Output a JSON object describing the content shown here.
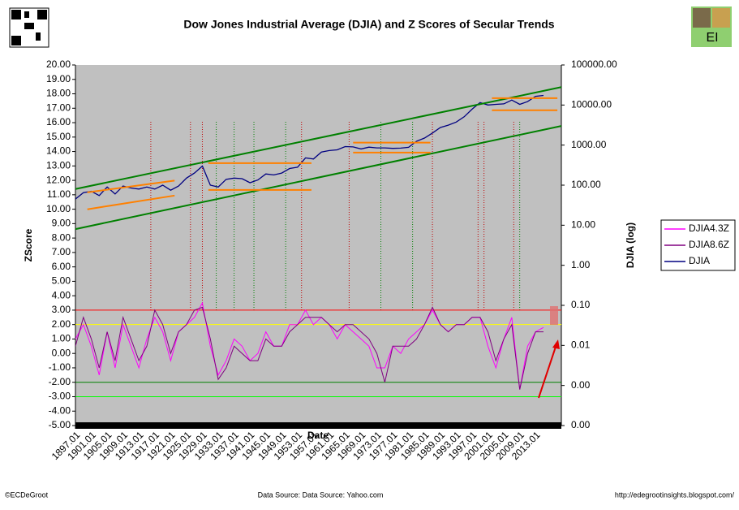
{
  "chart_data": {
    "type": "line",
    "title": "Dow Jones Industrial Average (DJIA) and Z Scores of Secular Trends",
    "y_label": "ZScore",
    "y2_label": "DJIA (log)",
    "x_label": "Date",
    "credit": "©ECDeGroot",
    "source": "Data Source:  Data Source: Yahoo.com",
    "url": "http://edegrootinsights.blogspot.com/",
    "logo_text": "EI",
    "legend": "right",
    "background": "#c0c0c0",
    "y2_log": true,
    "xlim": [
      1897,
      2019.5
    ],
    "ylim": [
      -5,
      20
    ],
    "y2lim": [
      0.0001,
      100000
    ],
    "xticks": [
      {
        "value": 1897,
        "label": "1897.01"
      },
      {
        "value": 1901,
        "label": "1901.01"
      },
      {
        "value": 1905,
        "label": "1905.01"
      },
      {
        "value": 1909,
        "label": "1909.01"
      },
      {
        "value": 1913,
        "label": "1913.01"
      },
      {
        "value": 1917,
        "label": "1917.01"
      },
      {
        "value": 1921,
        "label": "1921.01"
      },
      {
        "value": 1925,
        "label": "1925.01"
      },
      {
        "value": 1929,
        "label": "1929.01"
      },
      {
        "value": 1933,
        "label": "1933.01"
      },
      {
        "value": 1937,
        "label": "1937.01"
      },
      {
        "value": 1941,
        "label": "1941.01"
      },
      {
        "value": 1945,
        "label": "1945.01"
      },
      {
        "value": 1949,
        "label": "1949.01"
      },
      {
        "value": 1953,
        "label": "1953.01"
      },
      {
        "value": 1957,
        "label": "1957.01"
      },
      {
        "value": 1961,
        "label": "1961.01"
      },
      {
        "value": 1965,
        "label": "1965.01"
      },
      {
        "value": 1969,
        "label": "1969.01"
      },
      {
        "value": 1973,
        "label": "1973.01"
      },
      {
        "value": 1977,
        "label": "1977.01"
      },
      {
        "value": 1981,
        "label": "1981.01"
      },
      {
        "value": 1985,
        "label": "1985.01"
      },
      {
        "value": 1989,
        "label": "1989.01"
      },
      {
        "value": 1993,
        "label": "1993.01"
      },
      {
        "value": 1997,
        "label": "1997.01"
      },
      {
        "value": 2001,
        "label": "2001.01"
      },
      {
        "value": 2005,
        "label": "2005.01"
      },
      {
        "value": 2009,
        "label": "2009.01"
      },
      {
        "value": 2013,
        "label": "2013.01"
      }
    ],
    "yticks": [
      {
        "value": 20,
        "label": "20.00"
      },
      {
        "value": 19,
        "label": "19.00"
      },
      {
        "value": 18,
        "label": "18.00"
      },
      {
        "value": 17,
        "label": "17.00"
      },
      {
        "value": 16,
        "label": "16.00"
      },
      {
        "value": 15,
        "label": "15.00"
      },
      {
        "value": 14,
        "label": "14.00"
      },
      {
        "value": 13,
        "label": "13.00"
      },
      {
        "value": 12,
        "label": "12.00"
      },
      {
        "value": 11,
        "label": "11.00"
      },
      {
        "value": 10,
        "label": "10.00"
      },
      {
        "value": 9,
        "label": "9.00"
      },
      {
        "value": 8,
        "label": "8.00"
      },
      {
        "value": 7,
        "label": "7.00"
      },
      {
        "value": 6,
        "label": "6.00"
      },
      {
        "value": 5,
        "label": "5.00"
      },
      {
        "value": 4,
        "label": "4.00"
      },
      {
        "value": 3,
        "label": "3.00"
      },
      {
        "value": 2,
        "label": "2.00"
      },
      {
        "value": 1,
        "label": "1.00"
      },
      {
        "value": 0,
        "label": "0.00"
      },
      {
        "value": -1,
        "label": "-1.00"
      },
      {
        "value": -2,
        "label": "-2.00"
      },
      {
        "value": -3,
        "label": "-3.00"
      },
      {
        "value": -4,
        "label": "-4.00"
      },
      {
        "value": -5,
        "label": "-5.00"
      }
    ],
    "y2ticks": [
      {
        "value": 100000,
        "label": "100000.00"
      },
      {
        "value": 10000,
        "label": "10000.00"
      },
      {
        "value": 1000,
        "label": "1000.00"
      },
      {
        "value": 100,
        "label": "100.00"
      },
      {
        "value": 10,
        "label": "10.00"
      },
      {
        "value": 1,
        "label": "1.00"
      },
      {
        "value": 0.1,
        "label": "0.10"
      },
      {
        "value": 0.01,
        "label": "0.01"
      },
      {
        "value": 0.001,
        "label": "0.00"
      },
      {
        "value": 0.0001,
        "label": "0.00"
      }
    ],
    "x": [
      1897,
      1899,
      1901,
      1903,
      1905,
      1907,
      1909,
      1911,
      1913,
      1915,
      1917,
      1919,
      1921,
      1923,
      1925,
      1927,
      1929,
      1931,
      1933,
      1935,
      1937,
      1939,
      1941,
      1943,
      1945,
      1947,
      1949,
      1951,
      1953,
      1955,
      1957,
      1959,
      1961,
      1963,
      1965,
      1967,
      1969,
      1971,
      1973,
      1975,
      1977,
      1979,
      1981,
      1983,
      1985,
      1987,
      1989,
      1991,
      1993,
      1995,
      1997,
      1999,
      2001,
      2003,
      2005,
      2007,
      2009,
      2011,
      2013,
      2015
    ],
    "series": [
      {
        "name": "DJIA4.3Z",
        "color": "#ff00ff",
        "values": [
          1.0,
          2.0,
          0.5,
          -1.5,
          1.5,
          -1.0,
          2.0,
          0.5,
          -1.0,
          1.0,
          2.5,
          1.5,
          -0.5,
          1.5,
          2.0,
          2.5,
          3.5,
          0.5,
          -1.5,
          -0.5,
          1.0,
          0.5,
          -0.5,
          0.0,
          1.5,
          0.5,
          0.5,
          2.0,
          2.0,
          3.0,
          2.0,
          2.5,
          2.0,
          1.0,
          2.0,
          1.5,
          1.0,
          0.5,
          -1.0,
          -1.0,
          0.5,
          0.0,
          1.0,
          1.5,
          2.0,
          3.0,
          2.0,
          1.5,
          2.0,
          2.0,
          2.5,
          2.5,
          0.5,
          -1.0,
          1.0,
          2.5,
          -2.5,
          0.5,
          1.5,
          1.8
        ]
      },
      {
        "name": "DJIA8.6Z",
        "color": "#800080",
        "values": [
          0.5,
          2.5,
          1.0,
          -1.0,
          1.5,
          -0.5,
          2.5,
          1.0,
          -0.5,
          0.5,
          3.0,
          2.0,
          0.0,
          1.5,
          2.0,
          3.0,
          3.2,
          1.0,
          -1.8,
          -1.0,
          0.5,
          0.0,
          -0.5,
          -0.5,
          1.0,
          0.5,
          0.5,
          1.5,
          2.0,
          2.5,
          2.5,
          2.5,
          2.0,
          1.5,
          2.0,
          2.0,
          1.5,
          1.0,
          0.0,
          -2.0,
          0.5,
          0.5,
          0.5,
          1.0,
          2.0,
          3.2,
          2.0,
          1.5,
          2.0,
          2.0,
          2.5,
          2.5,
          1.5,
          -0.5,
          1.0,
          2.0,
          -2.5,
          0.0,
          1.5,
          1.5
        ]
      },
      {
        "name": "DJIA",
        "color": "#000080",
        "axis": "y2",
        "values": [
          45,
          65,
          70,
          55,
          90,
          60,
          95,
          85,
          80,
          90,
          80,
          100,
          75,
          95,
          150,
          200,
          300,
          100,
          90,
          140,
          150,
          145,
          115,
          135,
          190,
          180,
          200,
          260,
          280,
          480,
          450,
          670,
          730,
          760,
          920,
          900,
          800,
          890,
          850,
          850,
          830,
          840,
          880,
          1250,
          1500,
          2000,
          2750,
          3150,
          3750,
          5100,
          7900,
          11500,
          10000,
          10400,
          10700,
          13300,
          10400,
          12200,
          16500,
          17400
        ]
      }
    ],
    "reference_lines": [
      {
        "value": 3,
        "color": "#ff0000"
      },
      {
        "value": 2,
        "color": "#ffff00"
      },
      {
        "value": -2,
        "color": "#008000"
      },
      {
        "value": -3,
        "color": "#00ff00"
      }
    ],
    "trend_lines": [
      {
        "color": "#008000",
        "x": [
          1897,
          2019.5
        ],
        "y": [
          8,
          3000
        ]
      },
      {
        "color": "#008000",
        "x": [
          1897,
          2019.5
        ],
        "y": [
          80,
          28000
        ]
      },
      {
        "color": "#ff8000",
        "x": [
          1900,
          1922
        ],
        "y": [
          25,
          55
        ]
      },
      {
        "color": "#ff8000",
        "x": [
          1900,
          1922
        ],
        "y": [
          66,
          130
        ]
      },
      {
        "color": "#ff8000",
        "x": [
          1930.5,
          1956.5
        ],
        "y": [
          355,
          355
        ]
      },
      {
        "color": "#ff8000",
        "x": [
          1930.5,
          1956.5
        ],
        "y": [
          76,
          76
        ]
      },
      {
        "color": "#ff8000",
        "x": [
          1967,
          1986.5
        ],
        "y": [
          1150,
          1150
        ]
      },
      {
        "color": "#ff8000",
        "x": [
          1967,
          1986.5
        ],
        "y": [
          650,
          650
        ]
      },
      {
        "color": "#ff8000",
        "x": [
          2002,
          2018.5
        ],
        "y": [
          14800,
          14800
        ]
      },
      {
        "color": "#ff8000",
        "x": [
          2002,
          2018.5
        ],
        "y": [
          7400,
          7400
        ]
      }
    ],
    "event_lines": [
      {
        "x": 1916,
        "color": "#c00000"
      },
      {
        "x": 1926,
        "color": "#c00000"
      },
      {
        "x": 1929,
        "color": "#c00000"
      },
      {
        "x": 1932.5,
        "color": "#008000"
      },
      {
        "x": 1937,
        "color": "#008000"
      },
      {
        "x": 1942,
        "color": "#008000"
      },
      {
        "x": 1950,
        "color": "#008000"
      },
      {
        "x": 1954,
        "color": "#c00000"
      },
      {
        "x": 1966,
        "color": "#c00000"
      },
      {
        "x": 1974,
        "color": "#008000"
      },
      {
        "x": 1982,
        "color": "#008000"
      },
      {
        "x": 1987,
        "color": "#c00000"
      },
      {
        "x": 1998.5,
        "color": "#c00000"
      },
      {
        "x": 2000,
        "color": "#c00000"
      },
      {
        "x": 2007.5,
        "color": "#c00000"
      },
      {
        "x": 2009,
        "color": "#008000"
      }
    ]
  }
}
